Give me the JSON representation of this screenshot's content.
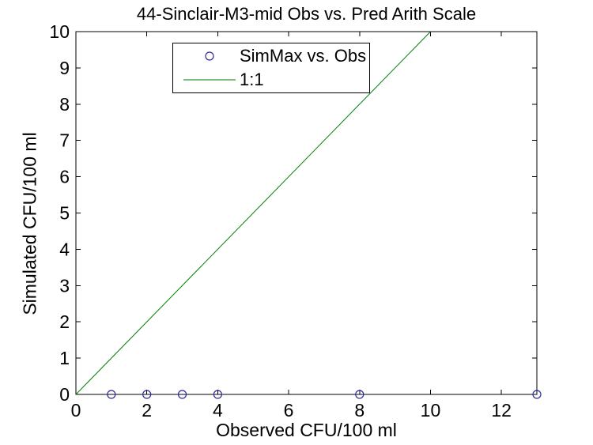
{
  "chart_data": {
    "type": "scatter",
    "title": "44-Sinclair-M3-mid Obs vs. Pred Arith Scale",
    "xlabel": "Observed CFU/100 ml",
    "ylabel": "Simulated CFU/100 ml",
    "xlim": [
      0,
      13
    ],
    "ylim": [
      0,
      10
    ],
    "xticks": [
      0,
      2,
      4,
      6,
      8,
      10,
      12
    ],
    "yticks": [
      0,
      1,
      2,
      3,
      4,
      5,
      6,
      7,
      8,
      9,
      10
    ],
    "grid": false,
    "legend_position": "upper-left-inside",
    "background_color": "#FFFFFF",
    "axis_color": "#000000",
    "series": [
      {
        "name": "SimMax vs. Obs",
        "type": "scatter",
        "marker": "circle-open",
        "color": "#2B2B9B",
        "points": [
          [
            1,
            0
          ],
          [
            2,
            0
          ],
          [
            3,
            0
          ],
          [
            4,
            0
          ],
          [
            8,
            0
          ],
          [
            13,
            0
          ]
        ]
      },
      {
        "name": "1:1",
        "type": "line",
        "color": "#007F00",
        "points": [
          [
            0,
            0
          ],
          [
            10,
            10
          ]
        ]
      }
    ]
  }
}
